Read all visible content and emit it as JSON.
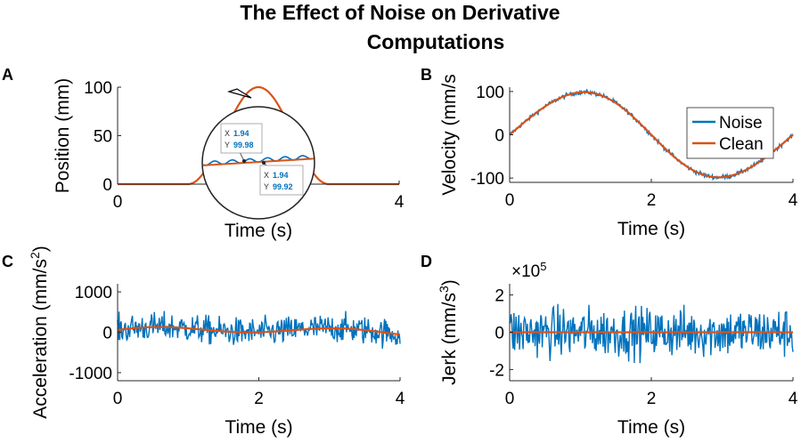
{
  "figure_title_line1": "The Effect of Noise on Derivative",
  "figure_title_line2": "Computations",
  "colors": {
    "noise": "#0072BD",
    "clean": "#D95319",
    "axis": "#262626",
    "datatip_value": "#0072BD"
  },
  "chart_data": [
    {
      "panel": "A",
      "type": "line",
      "xlabel": "Time (s)",
      "ylabel": "Position (mm)",
      "xlim": [
        0,
        4
      ],
      "ylim": [
        0,
        100
      ],
      "xticks": [
        0,
        4
      ],
      "xtick_labels": [
        "0",
        "4"
      ],
      "yticks": [
        0,
        50,
        100
      ],
      "ytick_labels": [
        "0",
        "50",
        "100"
      ],
      "series": [
        {
          "name": "Clean",
          "kind": "position",
          "noise_amp": 0
        }
      ],
      "inset": {
        "description_labels": true,
        "tip1": {
          "x_label": "X",
          "x_value": "1.94",
          "y_label": "Y",
          "y_value": "99.98"
        },
        "tip2": {
          "x_label": "X",
          "x_value": "1.94",
          "y_label": "Y",
          "y_value": "99.92"
        }
      }
    },
    {
      "panel": "B",
      "type": "line",
      "xlabel": "Time (s)",
      "ylabel": "Velocity (mm/s",
      "xlim": [
        0,
        4
      ],
      "ylim": [
        -110,
        110
      ],
      "xticks": [
        0,
        2,
        4
      ],
      "xtick_labels": [
        "0",
        "2",
        "4"
      ],
      "yticks": [
        -100,
        0,
        100
      ],
      "ytick_labels": [
        "-100",
        "0",
        "100"
      ],
      "series": [
        {
          "name": "Noise",
          "kind": "velocity",
          "noise_amp": 7
        },
        {
          "name": "Clean",
          "kind": "velocity",
          "noise_amp": 0
        }
      ],
      "legend": [
        "Noise",
        "Clean"
      ],
      "legend_position": "top-right"
    },
    {
      "panel": "C",
      "type": "line",
      "xlabel": "Time (s)",
      "ylabel": "Acceleration (mm/s",
      "ylabel_sup": "2",
      "xlim": [
        0,
        4
      ],
      "ylim": [
        -1200,
        1200
      ],
      "xticks": [
        0,
        2,
        4
      ],
      "xtick_labels": [
        "0",
        "2",
        "4"
      ],
      "yticks": [
        -1000,
        0,
        1000
      ],
      "ytick_labels": [
        "-1000",
        "0",
        "1000"
      ],
      "series": [
        {
          "name": "Noise",
          "kind": "acceleration",
          "noise_amp": 500
        },
        {
          "name": "Clean",
          "kind": "acceleration",
          "noise_amp": 0
        }
      ]
    },
    {
      "panel": "D",
      "type": "line",
      "xlabel": "Time (s)",
      "ylabel": "Jerk (mm/s",
      "ylabel_sup": "3",
      "exponent_base": "×10",
      "exponent_power": "5",
      "xlim": [
        0,
        4
      ],
      "ylim": [
        -2.6,
        2.6
      ],
      "xticks": [
        0,
        2,
        4
      ],
      "xtick_labels": [
        "0",
        "2",
        "4"
      ],
      "yticks": [
        -2,
        0,
        2
      ],
      "ytick_labels": [
        "-2",
        "0",
        "2"
      ],
      "series": [
        {
          "name": "Noise",
          "kind": "jerk",
          "noise_amp": 1.9
        },
        {
          "name": "Clean",
          "kind": "jerk",
          "noise_amp": 0
        }
      ]
    }
  ]
}
